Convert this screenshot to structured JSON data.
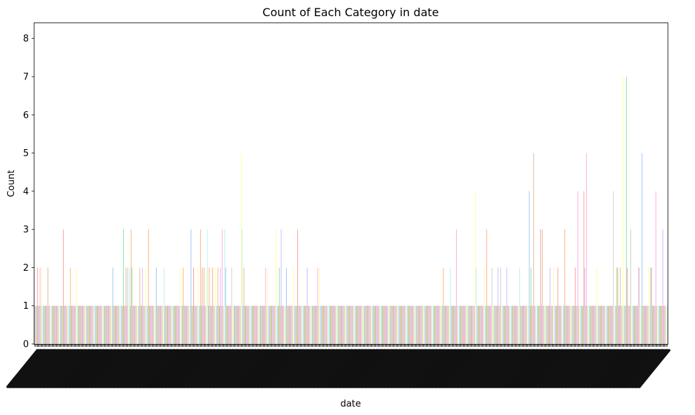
{
  "chart_data": {
    "type": "bar",
    "title": "Count of Each Category in date",
    "xlabel": "date",
    "ylabel": "Count",
    "ylim": [
      0,
      8.4
    ],
    "yticks": [
      0,
      1,
      2,
      3,
      4,
      5,
      6,
      7,
      8
    ],
    "grid": false,
    "legend": "none",
    "note": "x tick labels (individual dates) are overlapping and unreadable; categories not recoverable",
    "palette": [
      "#a1c9f4",
      "#ffb482",
      "#8de5a1",
      "#ff9f9b",
      "#d0bbff",
      "#debb9b",
      "#fab0e4",
      "#cfcfcf",
      "#fffea3",
      "#b9f2f0"
    ],
    "values": [
      1,
      1,
      1,
      2,
      1,
      1,
      2,
      1,
      2,
      1,
      1,
      1,
      1,
      1,
      1,
      2,
      1,
      1,
      1,
      1,
      1,
      1,
      1,
      1,
      1,
      1,
      1,
      1,
      1,
      1,
      1,
      1,
      1,
      3,
      1,
      1,
      1,
      1,
      1,
      1,
      1,
      2,
      1,
      1,
      1,
      1,
      1,
      1,
      2,
      1,
      1,
      1,
      1,
      1,
      1,
      1,
      1,
      1,
      1,
      1,
      1,
      1,
      1,
      1,
      1,
      1,
      1,
      1,
      1,
      1,
      1,
      1,
      1,
      1,
      1,
      1,
      1,
      1,
      1,
      1,
      1,
      1,
      1,
      1,
      1,
      1,
      1,
      1,
      1,
      1,
      2,
      1,
      1,
      1,
      1,
      1,
      1,
      1,
      1,
      1,
      1,
      1,
      3,
      1,
      1,
      2,
      1,
      2,
      1,
      2,
      1,
      3,
      2,
      1,
      1,
      1,
      1,
      1,
      1,
      1,
      1,
      2,
      1,
      1,
      2,
      1,
      1,
      1,
      2,
      1,
      1,
      3,
      1,
      1,
      1,
      1,
      1,
      1,
      1,
      1,
      2,
      1,
      1,
      1,
      1,
      1,
      1,
      1,
      1,
      2,
      1,
      1,
      1,
      1,
      1,
      1,
      1,
      1,
      1,
      1,
      1,
      1,
      1,
      1,
      1,
      1,
      1,
      1,
      2,
      1,
      1,
      2,
      1,
      1,
      1,
      1,
      1,
      1,
      1,
      1,
      3,
      1,
      1,
      2,
      1,
      1,
      1,
      1,
      2,
      1,
      1,
      3,
      1,
      2,
      1,
      2,
      1,
      1,
      2,
      3,
      1,
      2,
      1,
      1,
      1,
      2,
      1,
      1,
      2,
      1,
      1,
      2,
      1,
      1,
      2,
      1,
      3,
      1,
      1,
      3,
      2,
      1,
      1,
      1,
      1,
      1,
      1,
      2,
      1,
      1,
      1,
      1,
      1,
      1,
      1,
      1,
      1,
      1,
      5,
      3,
      1,
      2,
      1,
      1,
      1,
      1,
      1,
      1,
      1,
      1,
      1,
      1,
      1,
      1,
      1,
      1,
      1,
      1,
      1,
      1,
      1,
      1,
      1,
      1,
      1,
      1,
      2,
      1,
      2,
      1,
      1,
      1,
      1,
      1,
      1,
      1,
      1,
      1,
      3,
      1,
      1,
      1,
      2,
      1,
      3,
      1,
      1,
      1,
      1,
      1,
      2,
      1,
      1,
      1,
      1,
      1,
      1,
      1,
      2,
      1,
      1,
      1,
      1,
      3,
      1,
      1,
      1,
      1,
      1,
      1,
      1,
      1,
      1,
      1,
      2,
      1,
      1,
      1,
      1,
      1,
      1,
      1,
      1,
      1,
      1,
      1,
      2,
      1,
      2,
      1,
      1,
      1,
      1,
      1,
      1,
      1,
      1,
      1,
      1,
      1,
      1,
      1,
      1,
      1,
      1,
      1,
      1,
      1,
      1,
      1,
      1,
      1,
      1,
      1,
      1,
      1,
      1,
      1,
      1,
      1,
      1,
      1,
      1,
      1,
      1,
      1,
      1,
      1,
      1,
      1,
      1,
      1,
      1,
      1,
      1,
      1,
      1,
      1,
      1,
      1,
      1,
      1,
      1,
      1,
      1,
      1,
      1,
      1,
      1,
      1,
      1,
      1,
      1,
      1,
      1,
      1,
      1,
      1,
      1,
      1,
      1,
      1,
      1,
      1,
      1,
      1,
      1,
      1,
      1,
      1,
      1,
      1,
      1,
      1,
      1,
      1,
      1,
      1,
      1,
      1,
      1,
      1,
      1,
      1,
      1,
      1,
      1,
      1,
      1,
      1,
      1,
      1,
      1,
      1,
      1,
      1,
      1,
      1,
      1,
      1,
      1,
      1,
      1,
      1,
      1,
      1,
      1,
      1,
      1,
      1,
      1,
      1,
      1,
      1,
      1,
      1,
      1,
      1,
      1,
      1,
      1,
      1,
      1,
      1,
      1,
      1,
      1,
      1,
      1,
      1,
      1,
      2,
      1,
      1,
      1,
      1,
      1,
      1,
      1,
      2,
      1,
      1,
      1,
      1,
      1,
      1,
      3,
      1,
      1,
      1,
      1,
      1,
      1,
      1,
      1,
      1,
      1,
      1,
      1,
      1,
      1,
      1,
      1,
      1,
      1,
      1,
      1,
      1,
      4,
      2,
      1,
      1,
      1,
      1,
      1,
      1,
      1,
      1,
      2,
      1,
      1,
      3,
      1,
      1,
      1,
      1,
      1,
      2,
      1,
      1,
      1,
      1,
      1,
      1,
      2,
      1,
      1,
      2,
      1,
      1,
      1,
      1,
      1,
      1,
      2,
      1,
      1,
      1,
      1,
      1,
      1,
      1,
      1,
      1,
      1,
      1,
      1,
      1,
      1,
      2,
      1,
      1,
      1,
      1,
      1,
      1,
      1,
      1,
      1,
      1,
      4,
      1,
      2,
      1,
      1,
      5,
      1,
      1,
      1,
      1,
      1,
      1,
      1,
      3,
      1,
      3,
      1,
      1,
      1,
      1,
      1,
      1,
      1,
      1,
      2,
      1,
      1,
      1,
      2,
      1,
      1,
      1,
      1,
      2,
      1,
      1,
      1,
      1,
      1,
      1,
      1,
      3,
      1,
      1,
      1,
      1,
      1,
      1,
      1,
      1,
      1,
      1,
      1,
      2,
      1,
      1,
      4,
      1,
      1,
      1,
      1,
      1,
      1,
      4,
      2,
      1,
      5,
      1,
      1,
      1,
      1,
      1,
      1,
      1,
      1,
      1,
      1,
      1,
      2,
      1,
      1,
      1,
      1,
      1,
      1,
      1,
      1,
      1,
      1,
      1,
      1,
      1,
      1,
      1,
      1,
      1,
      1,
      4,
      1,
      1,
      1,
      2,
      2,
      1,
      1,
      2,
      1,
      1,
      7,
      1,
      1,
      1,
      7,
      2,
      1,
      1,
      1,
      3,
      1,
      1,
      1,
      1,
      1,
      1,
      1,
      1,
      2,
      2,
      1,
      1,
      5,
      1,
      1,
      1,
      1,
      1,
      1,
      1,
      2,
      1,
      2,
      2,
      1,
      1,
      1,
      1,
      4,
      1,
      1,
      1,
      1,
      1,
      1,
      1,
      3,
      1,
      1,
      1,
      1,
      1
    ]
  }
}
